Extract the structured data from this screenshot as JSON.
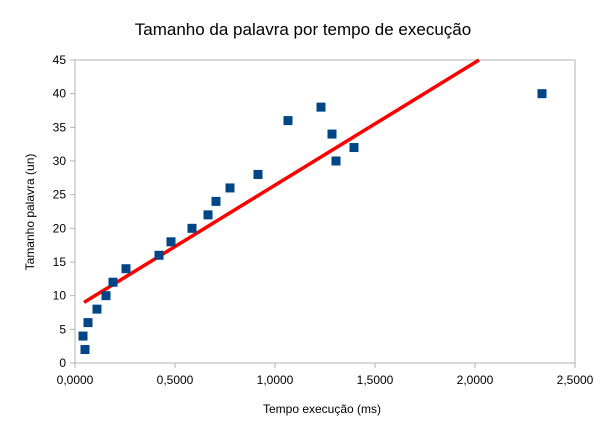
{
  "chart_data": {
    "type": "scatter",
    "title": "Tamanho da palavra por tempo de execução",
    "xlabel": "Tempo execução (ms)",
    "ylabel": "Tamanho palavra (un)",
    "xlim": [
      0,
      2.5
    ],
    "ylim": [
      0,
      45
    ],
    "x_ticks": [
      0,
      0.5,
      1,
      1.5,
      2,
      2.5
    ],
    "x_tick_labels": [
      "0,0000",
      "0,5000",
      "1,0000",
      "1,5000",
      "2,0000",
      "2,5000"
    ],
    "y_ticks": [
      0,
      5,
      10,
      15,
      20,
      25,
      30,
      35,
      40,
      45
    ],
    "y_tick_labels": [
      "0",
      "5",
      "10",
      "15",
      "20",
      "25",
      "30",
      "35",
      "40",
      "45"
    ],
    "grid": false,
    "series": [
      {
        "color": "#004586",
        "marker": "square",
        "points": [
          {
            "x": 0.04,
            "y": 4
          },
          {
            "x": 0.05,
            "y": 2
          },
          {
            "x": 0.065,
            "y": 6
          },
          {
            "x": 0.11,
            "y": 8
          },
          {
            "x": 0.155,
            "y": 10
          },
          {
            "x": 0.19,
            "y": 12
          },
          {
            "x": 0.255,
            "y": 14
          },
          {
            "x": 0.42,
            "y": 16
          },
          {
            "x": 0.48,
            "y": 18
          },
          {
            "x": 0.585,
            "y": 20
          },
          {
            "x": 0.665,
            "y": 22
          },
          {
            "x": 0.705,
            "y": 24
          },
          {
            "x": 0.775,
            "y": 26
          },
          {
            "x": 0.915,
            "y": 28
          },
          {
            "x": 1.065,
            "y": 36
          },
          {
            "x": 1.23,
            "y": 38
          },
          {
            "x": 1.285,
            "y": 34
          },
          {
            "x": 1.305,
            "y": 30
          },
          {
            "x": 1.395,
            "y": 32
          },
          {
            "x": 2.335,
            "y": 40
          }
        ]
      }
    ],
    "trendline": {
      "color": "#ff0000",
      "points": [
        {
          "x": 0.045,
          "y": 9
        },
        {
          "x": 2.02,
          "y": 45
        }
      ]
    }
  }
}
